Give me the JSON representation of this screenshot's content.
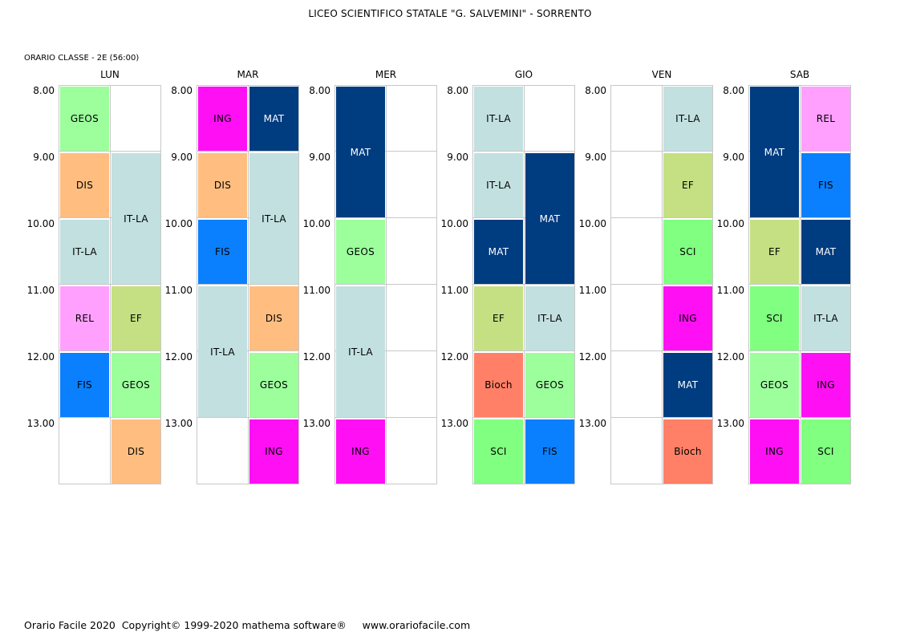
{
  "header": {
    "school": "LICEO SCIENTIFICO STATALE \"G. SALVEMINI\" - SORRENTO",
    "class_label": "ORARIO CLASSE  -  2E  (56:00)"
  },
  "footer": {
    "text": "Orario Facile 2020  Copyright© 1999-2020 mathema software®     www.orariofacile.com"
  },
  "times": [
    "8.00",
    "9.00",
    "10.00",
    "11.00",
    "12.00",
    "13.00"
  ],
  "colors": {
    "GEOS": "#9cff9c",
    "DIS": "#ffbe80",
    "IT-LA": "#c2e0e0",
    "REL": "#ffa0ff",
    "EF": "#c4e082",
    "FIS": "#0a80ff",
    "ING": "#ff0ff4",
    "MAT": "#003c80",
    "SCI": "#80ff80",
    "Bioch": "#ff8066"
  },
  "text_colors": {
    "MAT": "#ffffff"
  },
  "days": [
    {
      "name": "LUN",
      "lessons": [
        {
          "subject": "GEOS",
          "col": 0,
          "start": 0,
          "span": 1
        },
        {
          "subject": "DIS",
          "col": 0,
          "start": 1,
          "span": 1
        },
        {
          "subject": "IT-LA",
          "col": 1,
          "start": 1,
          "span": 2
        },
        {
          "subject": "IT-LA",
          "col": 0,
          "start": 2,
          "span": 1
        },
        {
          "subject": "REL",
          "col": 0,
          "start": 3,
          "span": 1
        },
        {
          "subject": "EF",
          "col": 1,
          "start": 3,
          "span": 1
        },
        {
          "subject": "FIS",
          "col": 0,
          "start": 4,
          "span": 1
        },
        {
          "subject": "GEOS",
          "col": 1,
          "start": 4,
          "span": 1
        },
        {
          "subject": "DIS",
          "col": 1,
          "start": 5,
          "span": 1
        }
      ]
    },
    {
      "name": "MAR",
      "lessons": [
        {
          "subject": "ING",
          "col": 0,
          "start": 0,
          "span": 1
        },
        {
          "subject": "MAT",
          "col": 1,
          "start": 0,
          "span": 1
        },
        {
          "subject": "DIS",
          "col": 0,
          "start": 1,
          "span": 1
        },
        {
          "subject": "IT-LA",
          "col": 1,
          "start": 1,
          "span": 2
        },
        {
          "subject": "FIS",
          "col": 0,
          "start": 2,
          "span": 1
        },
        {
          "subject": "IT-LA",
          "col": 0,
          "start": 3,
          "span": 2
        },
        {
          "subject": "DIS",
          "col": 1,
          "start": 3,
          "span": 1
        },
        {
          "subject": "GEOS",
          "col": 1,
          "start": 4,
          "span": 1
        },
        {
          "subject": "ING",
          "col": 1,
          "start": 5,
          "span": 1
        }
      ]
    },
    {
      "name": "MER",
      "lessons": [
        {
          "subject": "MAT",
          "col": 0,
          "start": 0,
          "span": 2
        },
        {
          "subject": "GEOS",
          "col": 0,
          "start": 2,
          "span": 1
        },
        {
          "subject": "IT-LA",
          "col": 0,
          "start": 3,
          "span": 2
        },
        {
          "subject": "ING",
          "col": 0,
          "start": 5,
          "span": 1
        }
      ]
    },
    {
      "name": "GIO",
      "lessons": [
        {
          "subject": "IT-LA",
          "col": 0,
          "start": 0,
          "span": 1
        },
        {
          "subject": "IT-LA",
          "col": 0,
          "start": 1,
          "span": 1
        },
        {
          "subject": "MAT",
          "col": 1,
          "start": 1,
          "span": 2
        },
        {
          "subject": "MAT",
          "col": 0,
          "start": 2,
          "span": 1
        },
        {
          "subject": "EF",
          "col": 0,
          "start": 3,
          "span": 1
        },
        {
          "subject": "IT-LA",
          "col": 1,
          "start": 3,
          "span": 1
        },
        {
          "subject": "Bioch",
          "col": 0,
          "start": 4,
          "span": 1
        },
        {
          "subject": "GEOS",
          "col": 1,
          "start": 4,
          "span": 1
        },
        {
          "subject": "SCI",
          "col": 0,
          "start": 5,
          "span": 1
        },
        {
          "subject": "FIS",
          "col": 1,
          "start": 5,
          "span": 1
        }
      ]
    },
    {
      "name": "VEN",
      "lessons": [
        {
          "subject": "IT-LA",
          "col": 1,
          "start": 0,
          "span": 1
        },
        {
          "subject": "EF",
          "col": 1,
          "start": 1,
          "span": 1
        },
        {
          "subject": "SCI",
          "col": 1,
          "start": 2,
          "span": 1
        },
        {
          "subject": "ING",
          "col": 1,
          "start": 3,
          "span": 1
        },
        {
          "subject": "MAT",
          "col": 1,
          "start": 4,
          "span": 1
        },
        {
          "subject": "Bioch",
          "col": 1,
          "start": 5,
          "span": 1
        }
      ]
    },
    {
      "name": "SAB",
      "lessons": [
        {
          "subject": "MAT",
          "col": 0,
          "start": 0,
          "span": 2
        },
        {
          "subject": "REL",
          "col": 1,
          "start": 0,
          "span": 1
        },
        {
          "subject": "FIS",
          "col": 1,
          "start": 1,
          "span": 1
        },
        {
          "subject": "EF",
          "col": 0,
          "start": 2,
          "span": 1
        },
        {
          "subject": "MAT",
          "col": 1,
          "start": 2,
          "span": 1
        },
        {
          "subject": "SCI",
          "col": 0,
          "start": 3,
          "span": 1
        },
        {
          "subject": "IT-LA",
          "col": 1,
          "start": 3,
          "span": 1
        },
        {
          "subject": "GEOS",
          "col": 0,
          "start": 4,
          "span": 1
        },
        {
          "subject": "ING",
          "col": 1,
          "start": 4,
          "span": 1
        },
        {
          "subject": "ING",
          "col": 0,
          "start": 5,
          "span": 1
        },
        {
          "subject": "SCI",
          "col": 1,
          "start": 5,
          "span": 1
        }
      ]
    }
  ]
}
